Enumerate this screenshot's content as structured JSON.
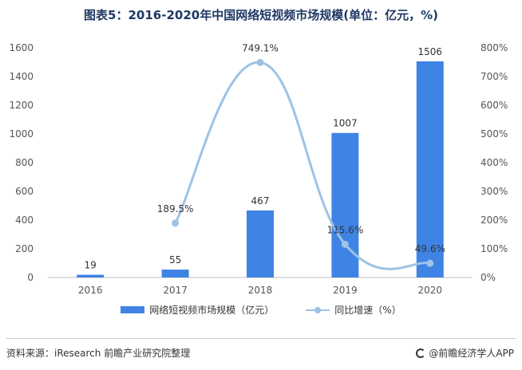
{
  "title": "图表5：2016-2020年中国网络短视频市场规模(单位：亿元，%)",
  "source": "资料来源：iResearch 前瞻产业研究院整理",
  "brand": "@前瞻经济学人APP",
  "colors": {
    "bar": "#3f84e5",
    "line": "#9dc3e6",
    "title": "#1f3864"
  },
  "chart_data": {
    "type": "bar",
    "categories": [
      "2016",
      "2017",
      "2018",
      "2019",
      "2020"
    ],
    "series": [
      {
        "name": "网络短视频市场规模（亿元）",
        "type": "bar",
        "axis": "left",
        "values": [
          19,
          55,
          467,
          1007,
          1506
        ],
        "labels": [
          "19",
          "55",
          "467",
          "1007",
          "1506"
        ]
      },
      {
        "name": "同比增速（%）",
        "type": "line",
        "axis": "right",
        "values": [
          null,
          189.5,
          749.1,
          115.6,
          49.6
        ],
        "labels": [
          "",
          "189.5%",
          "749.1%",
          "115.6%",
          "49.6%"
        ]
      }
    ],
    "y_left": {
      "min": 0,
      "max": 1600,
      "ticks": [
        "0",
        "200",
        "400",
        "600",
        "800",
        "1000",
        "1200",
        "1400",
        "1600"
      ]
    },
    "y_right": {
      "min": 0,
      "max": 800,
      "ticks": [
        "0%",
        "100%",
        "200%",
        "300%",
        "400%",
        "500%",
        "600%",
        "700%",
        "800%"
      ]
    },
    "grid": false,
    "legend_position": "bottom"
  }
}
